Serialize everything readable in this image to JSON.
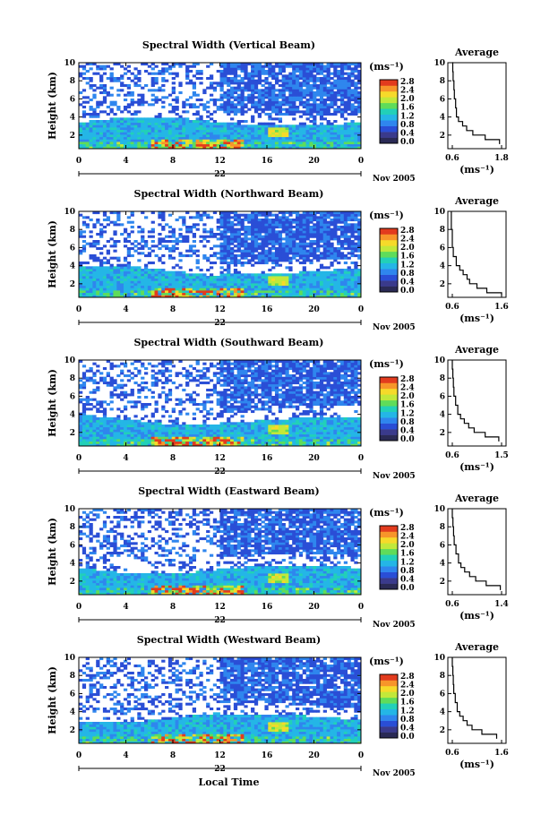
{
  "figure": {
    "xlabel": "Local Time",
    "date_label": "Nov 2005",
    "day_label": "22",
    "avg_title": "Average",
    "colorbar_unit": "(ms⁻¹)"
  },
  "colors": {
    "colormap": [
      "#3a3a8c",
      "#2a4ed6",
      "#2f86ee",
      "#24b6e6",
      "#22d0b8",
      "#5fdc5a",
      "#c2e83a",
      "#f6da2a",
      "#f7952a",
      "#e23b1e"
    ],
    "text": "#000000"
  },
  "chart_data": [
    {
      "type": "heatmap",
      "title": "Spectral Width (Vertical Beam)",
      "ylabel": "Height (km)",
      "xlabel": "",
      "x_ticks": [
        "0",
        "4",
        "8",
        "12",
        "16",
        "20",
        "0"
      ],
      "y_ticks": [
        "2",
        "4",
        "6",
        "8",
        "10"
      ],
      "xlim": [
        0,
        24
      ],
      "ylim": [
        0.5,
        10
      ],
      "colorbar": {
        "label": "(ms⁻¹)",
        "ticks": [
          "2.8",
          "2.4",
          "2.0",
          "1.6",
          "1.2",
          "0.8",
          "0.4",
          "0.0"
        ],
        "range": [
          0,
          2.8
        ]
      },
      "average_profile": {
        "title": "Average",
        "xlabel": "(ms⁻¹)",
        "x_ticks": [
          "0.6",
          "1.8"
        ],
        "y_ticks": [
          "2",
          "4",
          "6",
          "8",
          "10"
        ],
        "height_km": [
          1,
          1.5,
          2,
          2.5,
          3,
          3.5,
          4,
          5,
          6,
          7,
          8,
          9,
          10
        ],
        "width_ms": [
          1.75,
          1.4,
          1.1,
          0.95,
          0.85,
          0.75,
          0.7,
          0.68,
          0.65,
          0.64,
          0.62,
          0.61,
          0.6
        ]
      }
    },
    {
      "type": "heatmap",
      "title": "Spectral Width (Northward Beam)",
      "ylabel": "Height (km)",
      "xlabel": "",
      "x_ticks": [
        "0",
        "4",
        "8",
        "12",
        "16",
        "20",
        "0"
      ],
      "y_ticks": [
        "2",
        "4",
        "6",
        "8",
        "10"
      ],
      "xlim": [
        0,
        24
      ],
      "ylim": [
        0.5,
        10
      ],
      "colorbar": {
        "label": "(ms⁻¹)",
        "ticks": [
          "2.8",
          "2.4",
          "2.0",
          "1.6",
          "1.2",
          "0.8",
          "0.4",
          "0.0"
        ],
        "range": [
          0,
          2.8
        ]
      },
      "average_profile": {
        "title": "Average",
        "xlabel": "(ms⁻¹)",
        "x_ticks": [
          "0.6",
          "1.6"
        ],
        "y_ticks": [
          "2",
          "4",
          "6",
          "8",
          "10"
        ],
        "height_km": [
          0.7,
          1,
          1.5,
          2,
          2.5,
          3,
          3.5,
          4,
          5,
          6,
          7,
          8,
          9,
          10
        ],
        "width_ms": [
          1.6,
          1.3,
          1.1,
          0.95,
          0.9,
          0.82,
          0.75,
          0.68,
          0.62,
          0.6,
          0.6,
          0.58,
          0.58,
          0.58
        ]
      }
    },
    {
      "type": "heatmap",
      "title": "Spectral Width (Southward Beam)",
      "ylabel": "Height (km)",
      "xlabel": "",
      "x_ticks": [
        "0",
        "4",
        "8",
        "12",
        "16",
        "20",
        "0"
      ],
      "y_ticks": [
        "2",
        "4",
        "6",
        "8",
        "10"
      ],
      "xlim": [
        0,
        24
      ],
      "ylim": [
        0.5,
        10
      ],
      "colorbar": {
        "label": "(ms⁻¹)",
        "ticks": [
          "2.8",
          "2.4",
          "2.0",
          "1.6",
          "1.2",
          "0.8",
          "0.4",
          "0.0"
        ],
        "range": [
          0,
          2.8
        ]
      },
      "average_profile": {
        "title": "Average",
        "xlabel": "(ms⁻¹)",
        "x_ticks": [
          "0.6",
          "1.5"
        ],
        "y_ticks": [
          "2",
          "4",
          "6",
          "8",
          "10"
        ],
        "height_km": [
          1,
          1.5,
          2,
          2.5,
          3,
          3.5,
          4,
          5,
          6,
          7,
          8,
          9,
          10
        ],
        "width_ms": [
          1.45,
          1.2,
          1.0,
          0.9,
          0.82,
          0.75,
          0.7,
          0.66,
          0.63,
          0.62,
          0.61,
          0.6,
          0.6
        ]
      }
    },
    {
      "type": "heatmap",
      "title": "Spectral Width (Eastward Beam)",
      "ylabel": "Height (km)",
      "xlabel": "",
      "x_ticks": [
        "0",
        "4",
        "8",
        "12",
        "16",
        "20",
        "0"
      ],
      "y_ticks": [
        "2",
        "4",
        "6",
        "8",
        "10"
      ],
      "xlim": [
        0,
        24
      ],
      "ylim": [
        0.5,
        10
      ],
      "colorbar": {
        "label": "(ms⁻¹)",
        "ticks": [
          "2.8",
          "2.4",
          "2.0",
          "1.6",
          "1.2",
          "0.8",
          "0.4",
          "0.0"
        ],
        "range": [
          0,
          2.8
        ]
      },
      "average_profile": {
        "title": "Average",
        "xlabel": "(ms⁻¹)",
        "x_ticks": [
          "0.6",
          "1.4"
        ],
        "y_ticks": [
          "2",
          "4",
          "6",
          "8",
          "10"
        ],
        "height_km": [
          1,
          1.5,
          2,
          2.5,
          3,
          3.5,
          4,
          5,
          6,
          7,
          8,
          9,
          10
        ],
        "width_ms": [
          1.38,
          1.15,
          0.98,
          0.88,
          0.8,
          0.74,
          0.7,
          0.66,
          0.63,
          0.62,
          0.61,
          0.6,
          0.6
        ]
      }
    },
    {
      "type": "heatmap",
      "title": "Spectral Width (Westward Beam)",
      "ylabel": "Height (km)",
      "xlabel": "Local Time",
      "x_ticks": [
        "0",
        "4",
        "8",
        "12",
        "16",
        "20",
        "0"
      ],
      "y_ticks": [
        "2",
        "4",
        "6",
        "8",
        "10"
      ],
      "xlim": [
        0,
        24
      ],
      "ylim": [
        0.5,
        10
      ],
      "colorbar": {
        "label": "(ms⁻¹)",
        "ticks": [
          "2.8",
          "2.4",
          "2.0",
          "1.6",
          "1.2",
          "0.8",
          "0.4",
          "0.0"
        ],
        "range": [
          0,
          2.8
        ]
      },
      "average_profile": {
        "title": "Average",
        "xlabel": "(ms⁻¹)",
        "x_ticks": [
          "0.6",
          "1.6"
        ],
        "y_ticks": [
          "2",
          "4",
          "6",
          "8",
          "10"
        ],
        "height_km": [
          1,
          1.5,
          2,
          2.5,
          3,
          3.5,
          4,
          5,
          6,
          7,
          8,
          9,
          10
        ],
        "width_ms": [
          1.5,
          1.2,
          1.0,
          0.9,
          0.82,
          0.75,
          0.7,
          0.66,
          0.63,
          0.62,
          0.61,
          0.6,
          0.6
        ]
      }
    }
  ]
}
